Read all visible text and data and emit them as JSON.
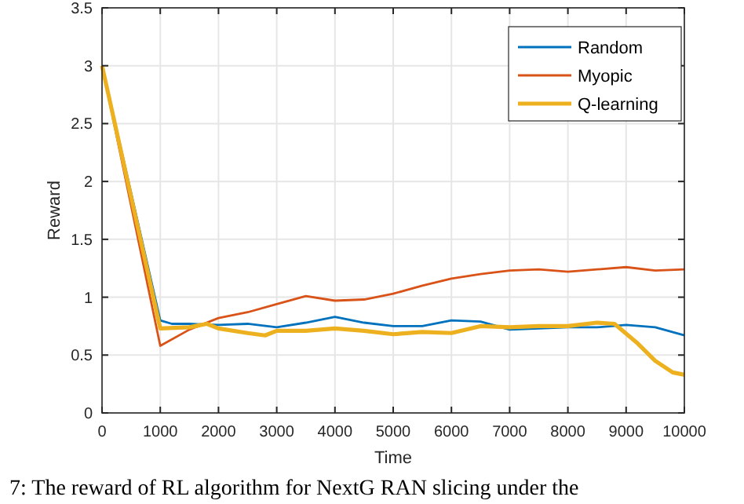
{
  "chart_data": {
    "type": "line",
    "xlabel": "Time",
    "ylabel": "Reward",
    "xlim": [
      0,
      10000
    ],
    "ylim": [
      0,
      3.5
    ],
    "xticks": [
      0,
      1000,
      2000,
      3000,
      4000,
      5000,
      6000,
      7000,
      8000,
      9000,
      10000
    ],
    "yticks": [
      0,
      0.5,
      1,
      1.5,
      2,
      2.5,
      3,
      3.5
    ],
    "grid": true,
    "legend": "top right",
    "line_style": "solid",
    "annotations": [
      "7: The reward of RL algorithm for NextG RAN slicing under the"
    ],
    "series": [
      {
        "name": "Random",
        "color": "#0072bd",
        "x": [
          0,
          1000,
          1200,
          1500,
          2000,
          2500,
          3000,
          3500,
          4000,
          4500,
          5000,
          5500,
          6000,
          6500,
          7000,
          7500,
          8000,
          8500,
          9000,
          9500,
          10000
        ],
        "values": [
          3,
          0.8,
          0.77,
          0.77,
          0.76,
          0.77,
          0.74,
          0.78,
          0.83,
          0.78,
          0.75,
          0.75,
          0.8,
          0.79,
          0.72,
          0.73,
          0.74,
          0.74,
          0.76,
          0.74,
          0.67
        ]
      },
      {
        "name": "Myopic",
        "color": "#d95319",
        "x": [
          0,
          1000,
          1500,
          2000,
          2500,
          3000,
          3500,
          4000,
          4500,
          5000,
          5500,
          6000,
          6500,
          7000,
          7500,
          8000,
          8500,
          9000,
          9500,
          10000
        ],
        "values": [
          3,
          0.58,
          0.72,
          0.82,
          0.87,
          0.94,
          1.01,
          0.97,
          0.98,
          1.03,
          1.1,
          1.16,
          1.2,
          1.23,
          1.24,
          1.22,
          1.24,
          1.26,
          1.23,
          1.24
        ]
      },
      {
        "name": "Q-learning",
        "color": "#edb120",
        "x": [
          0,
          1000,
          1500,
          1800,
          2000,
          2500,
          2800,
          3000,
          3500,
          4000,
          4500,
          5000,
          5500,
          6000,
          6500,
          7000,
          7500,
          8000,
          8500,
          8800,
          9200,
          9500,
          9800,
          10000
        ],
        "values": [
          3,
          0.73,
          0.74,
          0.77,
          0.73,
          0.69,
          0.67,
          0.71,
          0.71,
          0.73,
          0.71,
          0.68,
          0.7,
          0.69,
          0.75,
          0.74,
          0.75,
          0.75,
          0.78,
          0.77,
          0.6,
          0.45,
          0.35,
          0.33
        ]
      }
    ]
  }
}
